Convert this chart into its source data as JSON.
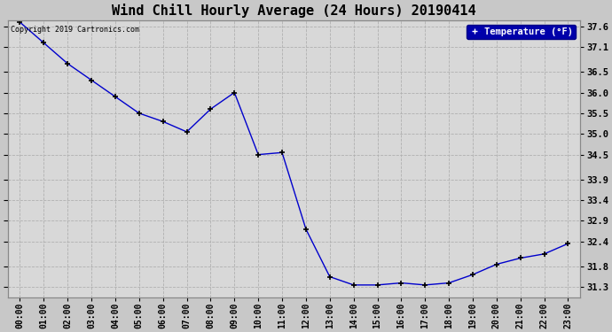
{
  "title": "Wind Chill Hourly Average (24 Hours) 20190414",
  "copyright": "Copyright 2019 Cartronics.com",
  "legend_label": "Temperature (°F)",
  "x_labels": [
    "00:00",
    "01:00",
    "02:00",
    "03:00",
    "04:00",
    "05:00",
    "06:00",
    "07:00",
    "08:00",
    "09:00",
    "10:00",
    "11:00",
    "12:00",
    "13:00",
    "14:00",
    "15:00",
    "16:00",
    "17:00",
    "18:00",
    "19:00",
    "20:00",
    "21:00",
    "22:00",
    "23:00"
  ],
  "y_values": [
    37.7,
    37.2,
    36.7,
    36.3,
    35.9,
    35.5,
    35.3,
    35.05,
    35.6,
    36.0,
    34.5,
    34.55,
    32.7,
    31.55,
    31.35,
    31.35,
    31.4,
    31.35,
    31.4,
    31.6,
    31.85,
    32.0,
    32.1,
    32.35
  ],
  "ylim": [
    31.05,
    37.75
  ],
  "yticks": [
    37.6,
    37.1,
    36.5,
    36.0,
    35.5,
    35.0,
    34.5,
    33.9,
    33.4,
    32.9,
    32.4,
    31.8,
    31.3
  ],
  "ytick_labels": [
    "37.6",
    "37.1",
    "36.5",
    "36.0",
    "35.5",
    "35.0",
    "34.5",
    "33.9",
    "33.4",
    "32.9",
    "32.4",
    "31.8",
    "31.3"
  ],
  "line_color": "#0000cc",
  "marker": "+",
  "marker_color": "#000000",
  "bg_color": "#c8c8c8",
  "plot_bg_color": "#d8d8d8",
  "grid_color": "#b0b0b0",
  "title_fontsize": 11,
  "legend_bg": "#0000aa",
  "legend_fg": "#ffffff"
}
